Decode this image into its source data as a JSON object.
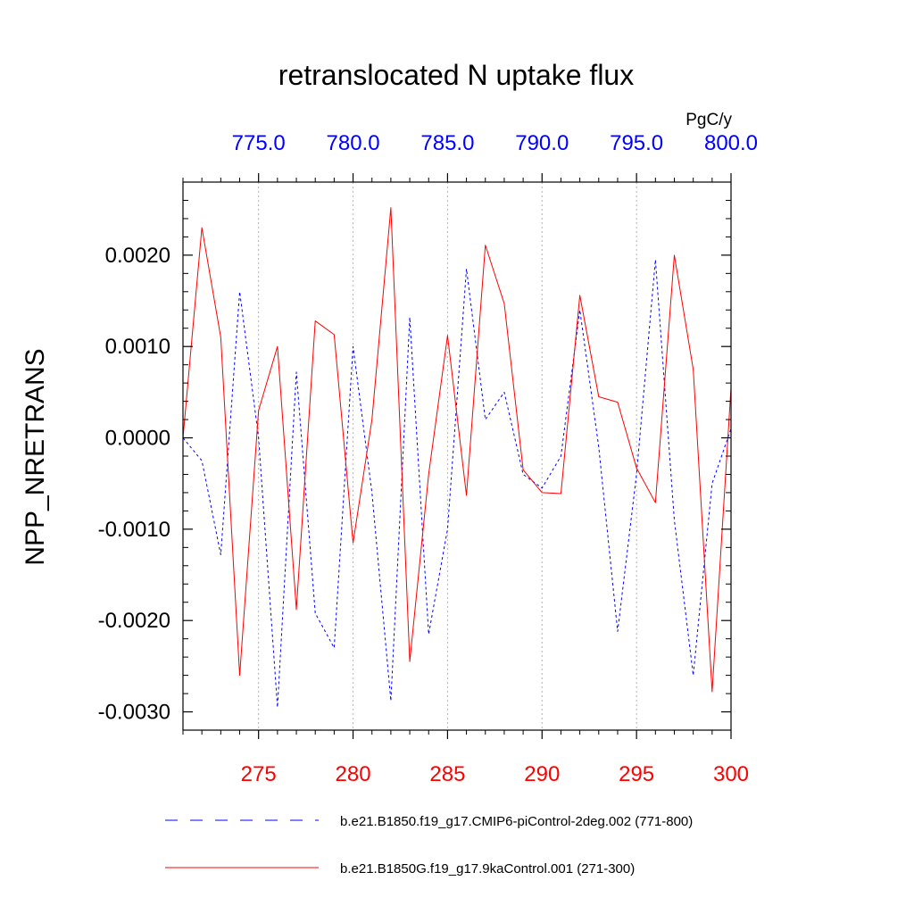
{
  "chart_data": {
    "type": "line",
    "title": "retranslocated N uptake flux",
    "ylabel": "NPP_NRETRANS",
    "units": "PgC/y",
    "grid": "vertical-dotted",
    "legend": "bottom",
    "colors": {
      "bottom_axis_labels": "#ff0000",
      "top_axis_labels": "#0000ff",
      "grid": "#b4b4b4",
      "axis": "#000000"
    },
    "ylim": [
      -0.0032,
      0.0028
    ],
    "yticks": [
      -0.003,
      -0.002,
      -0.001,
      0.0,
      0.001,
      0.002
    ],
    "ytick_labels": [
      "-0.0030",
      "-0.0020",
      "-0.0010",
      "0.0000",
      "0.0010",
      "0.0020"
    ],
    "bottom_axis": {
      "xlim": [
        271,
        300
      ],
      "ticks": [
        275,
        280,
        285,
        290,
        295,
        300
      ],
      "tick_labels": [
        "275",
        "280",
        "285",
        "290",
        "295",
        "300"
      ]
    },
    "top_axis": {
      "xlim": [
        771,
        800
      ],
      "ticks": [
        775,
        780,
        785,
        790,
        795,
        800
      ],
      "tick_labels": [
        "775.0",
        "780.0",
        "785.0",
        "790.0",
        "795.0",
        "800.0"
      ]
    },
    "series": [
      {
        "name": "b.e21.B1850.f19_g17.CMIP6-piControl-2deg.002 (771-800)",
        "color": "#0000ff",
        "style": "dashed",
        "axis": "top",
        "x": [
          771,
          772,
          773,
          774,
          775,
          776,
          777,
          778,
          779,
          780,
          781,
          782,
          783,
          784,
          785,
          786,
          787,
          788,
          789,
          790,
          791,
          792,
          793,
          794,
          795,
          796,
          797,
          798,
          799,
          800
        ],
        "values": [
          0.0,
          -0.00025,
          -0.00128,
          0.0016,
          0.0,
          -0.00295,
          0.00072,
          -0.00192,
          -0.0023,
          0.001,
          -0.0006,
          -0.00288,
          0.00132,
          -0.00215,
          -0.001,
          0.00185,
          0.0002,
          0.0005,
          -0.0004,
          -0.00055,
          -0.0002,
          0.0014,
          -0.0001,
          -0.00212,
          -0.0004,
          0.00195,
          -0.0009,
          -0.0026,
          -0.0005,
          0.0001
        ]
      },
      {
        "name": "b.e21.B1850G.f19_g17.9kaControl.001 (271-300)",
        "color": "#ff0000",
        "style": "solid",
        "axis": "bottom",
        "x": [
          271,
          272,
          273,
          274,
          275,
          276,
          277,
          278,
          279,
          280,
          281,
          282,
          283,
          284,
          285,
          286,
          287,
          288,
          289,
          290,
          291,
          292,
          293,
          294,
          295,
          296,
          297,
          298,
          299,
          300
        ],
        "values": [
          0.0,
          0.0023,
          0.0011,
          -0.0026,
          0.0003,
          0.001,
          -0.00188,
          0.00128,
          0.00113,
          -0.00115,
          0.0002,
          0.00252,
          -0.00245,
          -0.0004,
          0.00112,
          -0.00063,
          0.00211,
          0.00147,
          -0.00035,
          -0.0006,
          -0.00061,
          0.00156,
          0.00045,
          0.00039,
          -0.00033,
          -0.00071,
          0.002,
          0.00075,
          -0.00278,
          0.00055
        ]
      }
    ]
  }
}
